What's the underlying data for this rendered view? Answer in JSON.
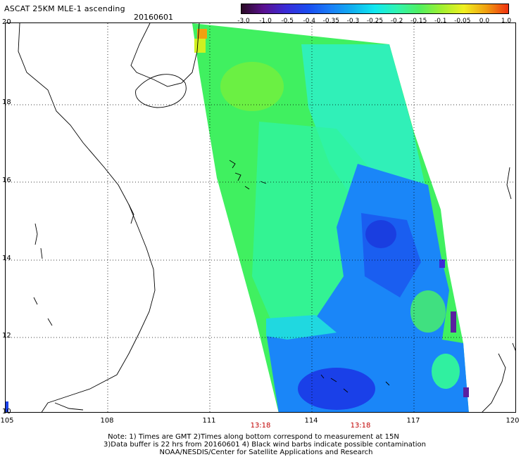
{
  "header": {
    "title": "ASCAT 25KM MLE-1 ascending",
    "date": "20160601"
  },
  "colorbar": {
    "labels": [
      "-3.0",
      "-1.0",
      "-0.5",
      "-0.4",
      "-0.35",
      "-0.3",
      "-0.25",
      "-0.2",
      "-0.15",
      "-0.1",
      "-0.05",
      "0.0",
      "1.0"
    ],
    "colors": [
      "#2a0a24",
      "#5a1090",
      "#3a2cd8",
      "#1a4cf0",
      "#1a7ef8",
      "#10b0f0",
      "#10e8f0",
      "#30f4b0",
      "#50f060",
      "#a0f030",
      "#f0f020",
      "#f0a010",
      "#f03010"
    ]
  },
  "axes": {
    "lon_labels": [
      "105",
      "108",
      "111",
      "114",
      "117",
      "120"
    ],
    "lat_labels": [
      "20",
      "18",
      "16",
      "14",
      "12",
      "10"
    ]
  },
  "times": [
    "13:18",
    "13:18"
  ],
  "footer": {
    "line1": "Note: 1) Times are GMT 2)Times along bottom correspond to measurement at 15N",
    "line2": "3)Data buffer is 22 hrs from 20160601 4) Black wind barbs indicate possible contamination",
    "line3": "NOAA/NESDIS/Center for Satellite Applications and Research"
  },
  "map_colors": {
    "land_line": "#000000",
    "grid": "#000000",
    "green": "#40f060",
    "cyan": "#20e8d8",
    "blue": "#1a6ef8"
  }
}
